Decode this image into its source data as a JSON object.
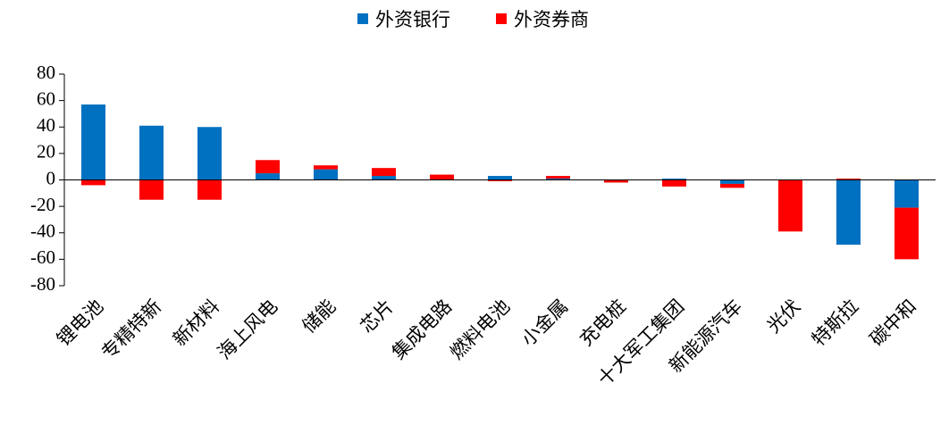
{
  "chart_data": {
    "type": "stacked_bar",
    "categories": [
      "锂电池",
      "专精特新",
      "新材料",
      "海上风电",
      "储能",
      "芯片",
      "集成电路",
      "燃料电池",
      "小金属",
      "充电桩",
      "十大军工集团",
      "新能源汽车",
      "光伏",
      "特斯拉",
      "碳中和"
    ],
    "series": [
      {
        "name": "外资银行",
        "color": "#0070c0",
        "values": [
          57,
          41,
          40,
          5,
          8,
          3,
          0,
          3,
          1,
          0,
          1,
          -3,
          0,
          -49,
          -21
        ]
      },
      {
        "name": "外资券商",
        "color": "#ff0000",
        "values": [
          -4,
          -15,
          -15,
          10,
          3,
          6,
          4,
          -1,
          2,
          -2,
          -5,
          -3,
          -39,
          1,
          -39
        ]
      }
    ],
    "ylim": [
      -80,
      80
    ],
    "yticks": [
      -80,
      -60,
      -40,
      -20,
      0,
      20,
      40,
      60,
      80
    ]
  }
}
